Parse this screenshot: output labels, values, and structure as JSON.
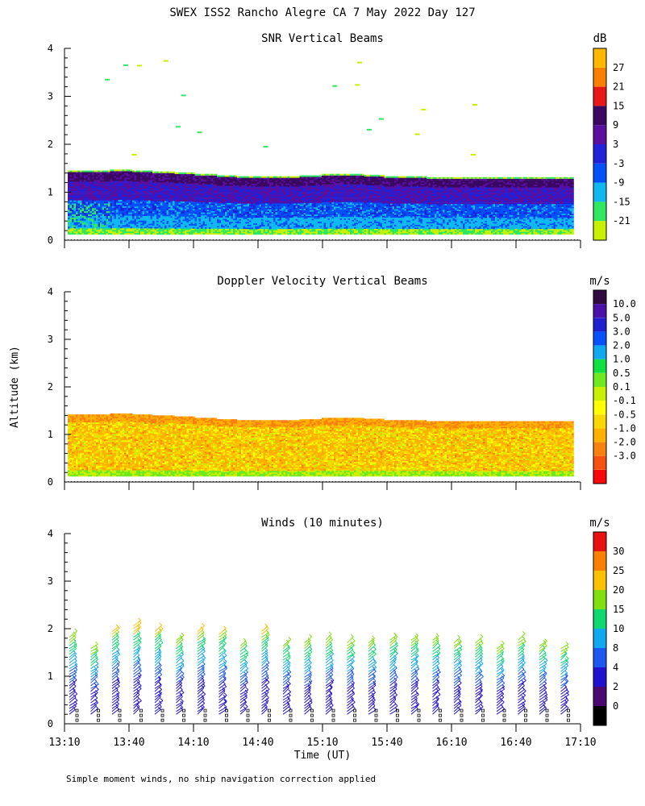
{
  "page_title": "SWEX ISS2 Rancho Alegre CA   7 May 2022 Day 127",
  "y_axis_label": "Altitude (km)",
  "x_axis_label": "Time (UT)",
  "footnote": "Simple moment winds, no ship navigation correction applied",
  "colors": {
    "snr": [
      "#c8f000",
      "#30e860",
      "#10b8f0",
      "#0050f8",
      "#2020d8",
      "#5a0ea0",
      "#3a0860",
      "#e81818",
      "#f88000",
      "#ffb800"
    ],
    "doppler": [
      "#f80808",
      "#f85010",
      "#f88010",
      "#ffb000",
      "#f8d800",
      "#ffff00",
      "#c8f000",
      "#70e820",
      "#10e040",
      "#10a8f0",
      "#0850f8",
      "#2020d0",
      "#4a10a8",
      "#300a40"
    ],
    "winds": [
      "#000000",
      "#4a0870",
      "#2010d0",
      "#1a58f0",
      "#10a8f0",
      "#10d870",
      "#80e010",
      "#f8c000",
      "#f88000",
      "#e81010"
    ]
  },
  "chart_data": [
    {
      "type": "heatmap",
      "title": "SNR Vertical Beams",
      "unit": "dB",
      "ylim": [
        0,
        4
      ],
      "y_ticks": [
        "0",
        "1",
        "2",
        "3",
        "4"
      ],
      "x_ticks": [
        "13:10",
        "13:40",
        "14:10",
        "14:40",
        "15:10",
        "15:40",
        "16:10",
        "16:40",
        "17:10"
      ],
      "show_x_tick_labels": false,
      "colorbar_labels": [
        "27",
        "21",
        "15",
        "9",
        "3",
        "-3",
        "-9",
        "-15",
        "-21"
      ],
      "top_altitude_km": [
        1.42,
        1.42,
        1.44,
        1.42,
        1.4,
        1.38,
        1.35,
        1.32,
        1.3,
        1.3,
        1.3,
        1.32,
        1.35,
        1.35,
        1.33,
        1.3,
        1.3,
        1.28,
        1.28,
        1.28,
        1.28,
        1.28,
        1.28,
        1.28
      ],
      "bottom_altitude_km": 0.12
    },
    {
      "type": "heatmap",
      "title": "Doppler Velocity Vertical Beams",
      "unit": "m/s",
      "ylim": [
        0,
        4
      ],
      "y_ticks": [
        "0",
        "1",
        "2",
        "3",
        "4"
      ],
      "x_ticks": [
        "13:10",
        "13:40",
        "14:10",
        "14:40",
        "15:10",
        "15:40",
        "16:10",
        "16:40",
        "17:10"
      ],
      "show_x_tick_labels": false,
      "colorbar_labels": [
        "10.0",
        "5.0",
        "3.0",
        "2.0",
        "1.0",
        "0.5",
        "0.1",
        "-0.1",
        "-0.5",
        "-1.0",
        "-2.0",
        "-3.0"
      ],
      "top_altitude_km": [
        1.42,
        1.42,
        1.44,
        1.42,
        1.4,
        1.38,
        1.35,
        1.32,
        1.3,
        1.3,
        1.3,
        1.32,
        1.35,
        1.35,
        1.33,
        1.3,
        1.3,
        1.28,
        1.28,
        1.28,
        1.28,
        1.28,
        1.28,
        1.28
      ],
      "bottom_altitude_km": 0.12
    },
    {
      "type": "scatter",
      "title": "Winds (10 minutes)",
      "unit": "m/s",
      "ylim": [
        0,
        4
      ],
      "y_ticks": [
        "0",
        "1",
        "2",
        "3",
        "4"
      ],
      "x_ticks": [
        "13:10",
        "13:40",
        "14:10",
        "14:40",
        "15:10",
        "15:40",
        "16:10",
        "16:40",
        "17:10"
      ],
      "show_x_tick_labels": true,
      "colorbar_labels": [
        "30",
        "25",
        "20",
        "15",
        "10",
        "8",
        "4",
        "2",
        "0"
      ],
      "profile_count": 24,
      "profile_top_altitude_km": [
        1.88,
        1.6,
        2.0,
        2.1,
        2.0,
        1.8,
        1.95,
        1.9,
        1.7,
        1.95,
        1.7,
        1.72,
        1.82,
        1.75,
        1.75,
        1.82,
        1.8,
        1.8,
        1.75,
        1.72,
        1.62,
        1.82,
        1.65,
        1.62
      ]
    }
  ]
}
